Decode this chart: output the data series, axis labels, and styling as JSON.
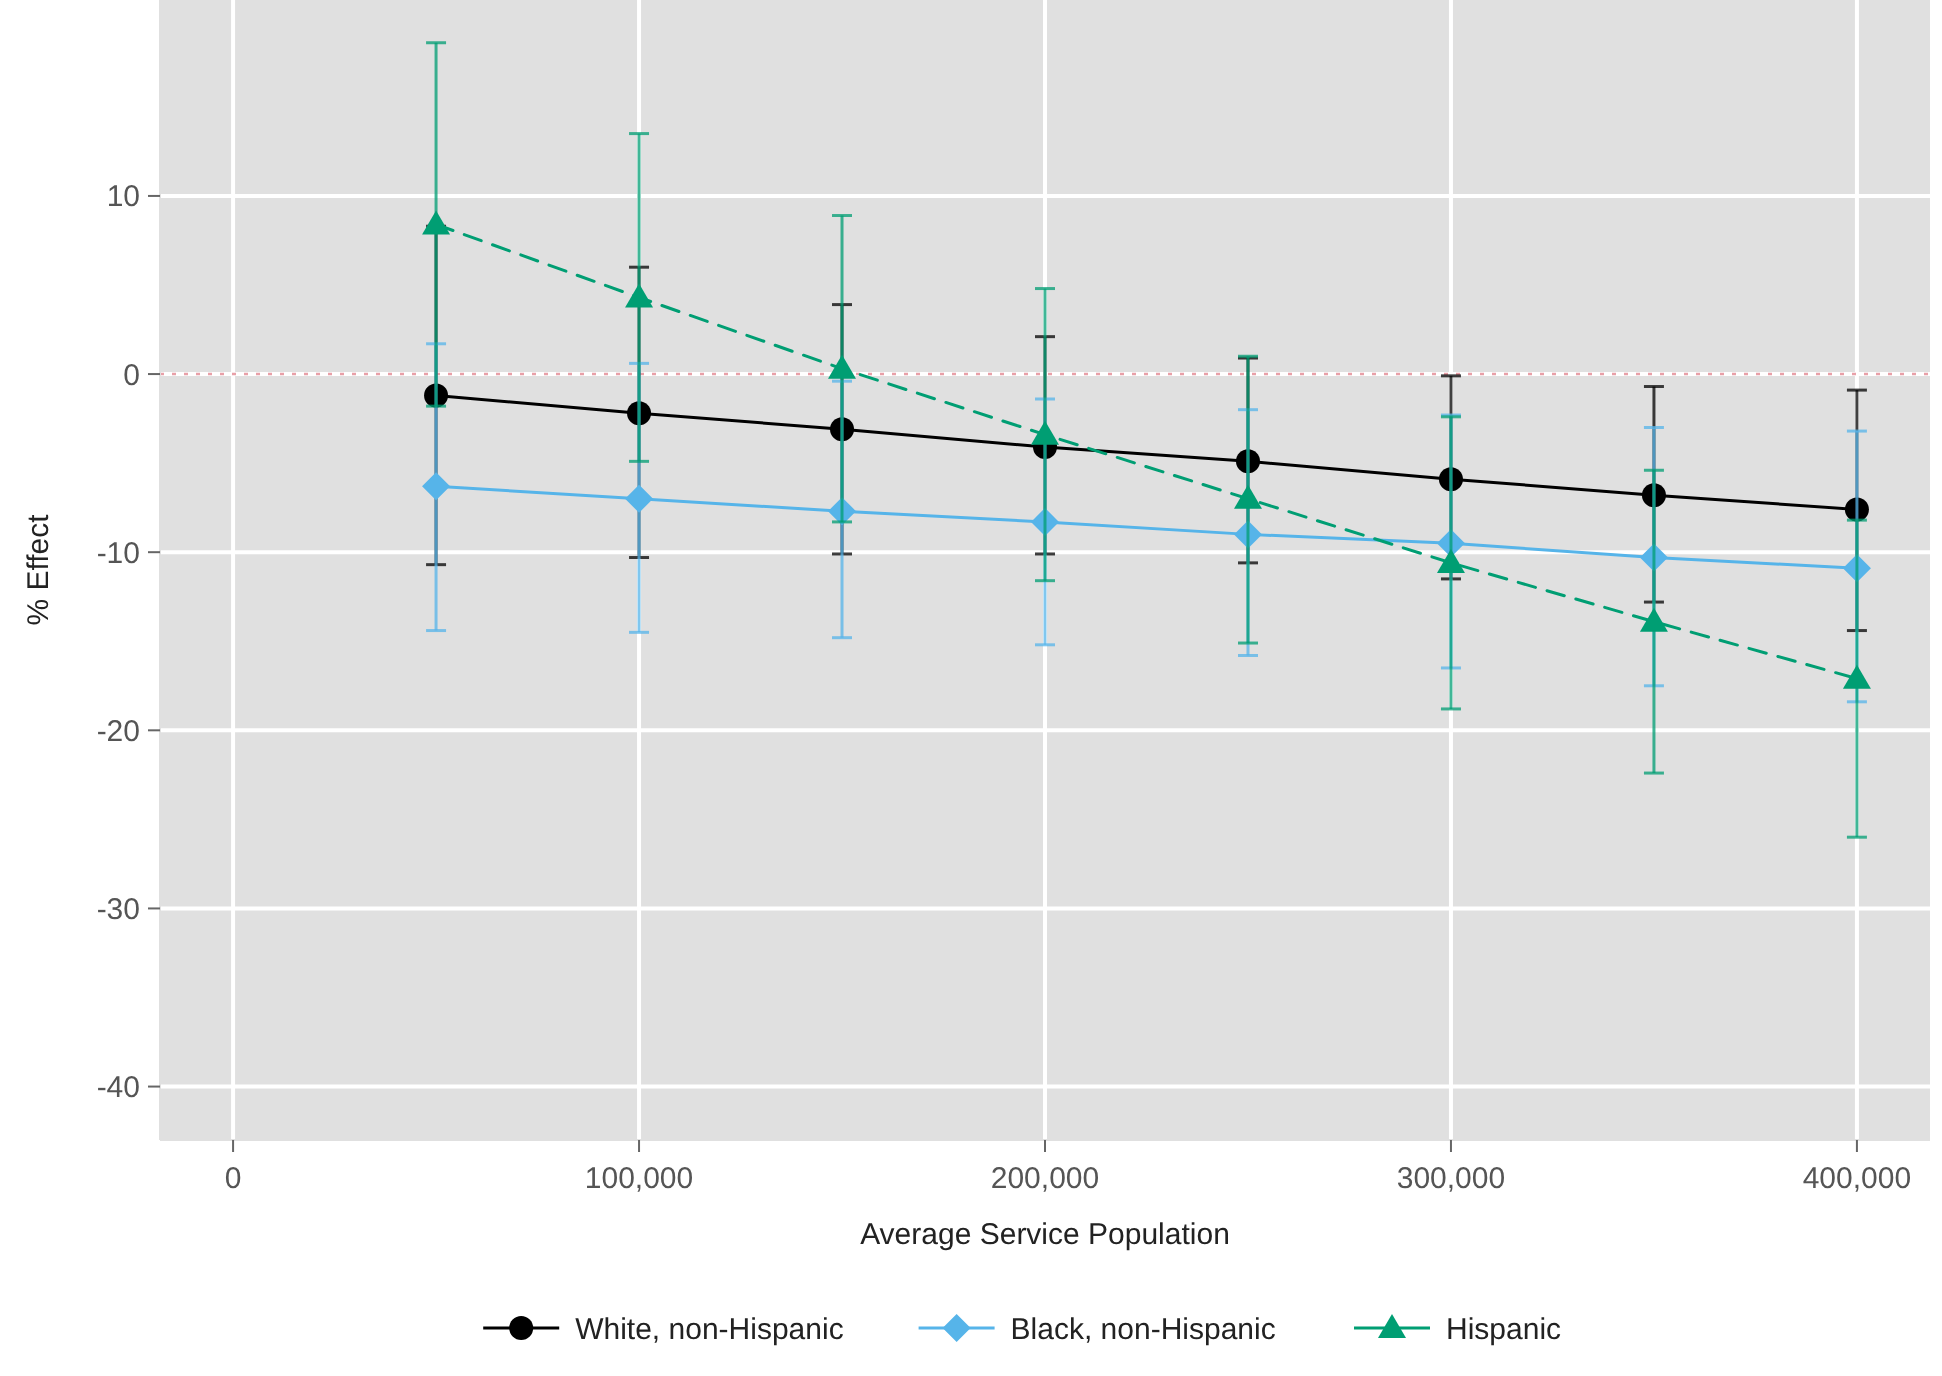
{
  "chart_data": {
    "type": "line",
    "xlabel": "Average Service Population",
    "ylabel": "% Effect",
    "x": [
      50000,
      100000,
      150000,
      200000,
      250000,
      300000,
      350000,
      400000
    ],
    "xlim": [
      -18000,
      418000
    ],
    "xticks": [
      0,
      {
        "value": 100000,
        "label": "100,000"
      },
      {
        "value": 200000,
        "label": "200,000"
      },
      {
        "value": 300000,
        "label": "300,000"
      },
      {
        "value": 400000,
        "label": "400,000"
      }
    ],
    "ylim": [
      -43,
      21
    ],
    "yticks": [
      -40,
      -30,
      -20,
      -10,
      0,
      10
    ],
    "grid": true,
    "legend": "bottom",
    "ref_lines": [
      {
        "axis": "y",
        "value": 0,
        "color": "#e8a0a8",
        "line_style": "dashed"
      }
    ],
    "series": [
      {
        "name": "White, non-Hispanic",
        "color": "#000000",
        "marker": "circle",
        "line_style": "solid",
        "values": [
          -1.2,
          -2.2,
          -3.1,
          -4.1,
          -4.9,
          -5.9,
          -6.8,
          -7.6
        ],
        "errors": [
          [
            -10.7,
            8.3
          ],
          [
            -10.3,
            6.0
          ],
          [
            -10.1,
            3.9
          ],
          [
            -10.1,
            2.1
          ],
          [
            -10.6,
            0.9
          ],
          [
            -11.5,
            -0.1
          ],
          [
            -12.8,
            -0.7
          ],
          [
            -14.4,
            -0.9
          ]
        ]
      },
      {
        "name": "Black, non-Hispanic",
        "color": "#56b4e9",
        "marker": "diamond",
        "line_style": "solid",
        "values": [
          -6.3,
          -7.0,
          -7.7,
          -8.3,
          -9.0,
          -9.5,
          -10.3,
          -10.9
        ],
        "errors": [
          [
            -14.4,
            1.7
          ],
          [
            -14.5,
            0.6
          ],
          [
            -14.8,
            -0.4
          ],
          [
            -15.2,
            -1.4
          ],
          [
            -15.8,
            -2.0
          ],
          [
            -16.5,
            -2.3
          ],
          [
            -17.5,
            -3.0
          ],
          [
            -18.4,
            -3.2
          ]
        ]
      },
      {
        "name": "Hispanic",
        "color": "#009e73",
        "marker": "triangle",
        "line_style": "dashed",
        "values": [
          8.4,
          4.3,
          0.3,
          -3.4,
          -7.0,
          -10.6,
          -13.9,
          -17.1
        ],
        "errors": [
          [
            -1.8,
            18.6
          ],
          [
            -4.9,
            13.5
          ],
          [
            -8.3,
            8.9
          ],
          [
            -11.6,
            4.8
          ],
          [
            -15.1,
            1.0
          ],
          [
            -18.8,
            -2.4
          ],
          [
            -22.4,
            -5.4
          ],
          [
            -26.0,
            -8.2
          ]
        ]
      }
    ]
  }
}
